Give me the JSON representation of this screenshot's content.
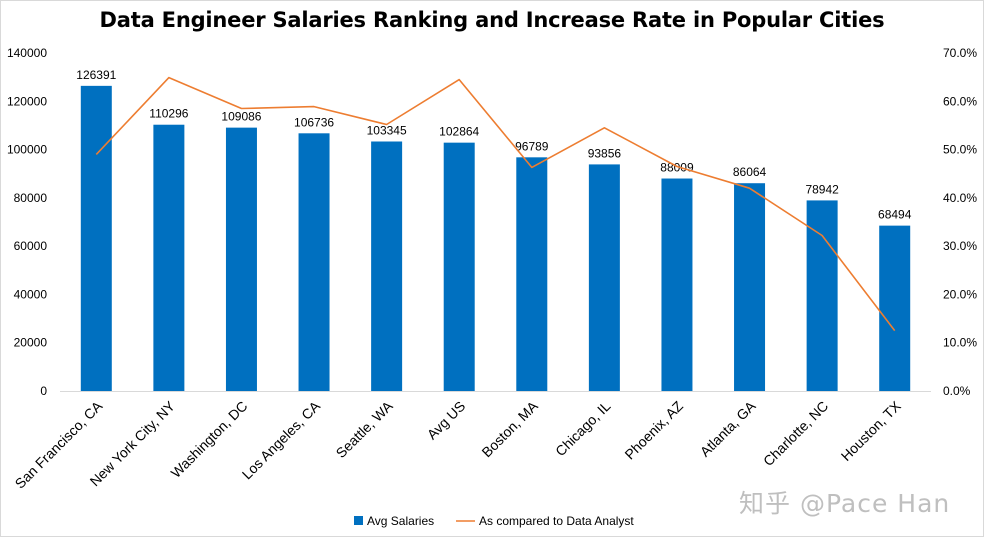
{
  "chart_data": {
    "type": "bar",
    "title": "Data Engineer Salaries Ranking and Increase Rate in Popular Cities",
    "categories": [
      "San Francisco, CA",
      "New York City, NY",
      "Washington, DC",
      "Los Angeles, CA",
      "Seattle, WA",
      "Avg US",
      "Boston, MA",
      "Chicago, IL",
      "Phoenix, AZ",
      "Atlanta, GA",
      "Charlotte, NC",
      "Houston, TX"
    ],
    "series": [
      {
        "name": "Avg Salaries",
        "type": "bar",
        "axis": "left",
        "color": "#0070c0",
        "values": [
          126391,
          110296,
          109086,
          106736,
          103345,
          102864,
          96789,
          93856,
          88009,
          86064,
          78942,
          68494
        ],
        "labels": [
          "126391",
          "110296",
          "109086",
          "106736",
          "103345",
          "102864",
          "96789",
          "93856",
          "88009",
          "86064",
          "78942",
          "68494"
        ]
      },
      {
        "name": "As compared to Data Analyst",
        "type": "line",
        "axis": "right",
        "color": "#ed7d31",
        "values": [
          0.49,
          0.649,
          0.585,
          0.589,
          0.552,
          0.645,
          0.463,
          0.545,
          0.465,
          0.42,
          0.322,
          0.125
        ]
      }
    ],
    "y_left": {
      "ylim": [
        0,
        140000
      ],
      "ticks": [
        "0",
        "20000",
        "40000",
        "60000",
        "80000",
        "100000",
        "120000",
        "140000"
      ]
    },
    "y_right": {
      "ylim": [
        0,
        0.7
      ],
      "ticks": [
        "0.0%",
        "10.0%",
        "20.0%",
        "30.0%",
        "40.0%",
        "50.0%",
        "60.0%",
        "70.0%"
      ]
    },
    "grid": false,
    "legend": "bottom"
  },
  "watermark": "知乎 @Pace Han"
}
